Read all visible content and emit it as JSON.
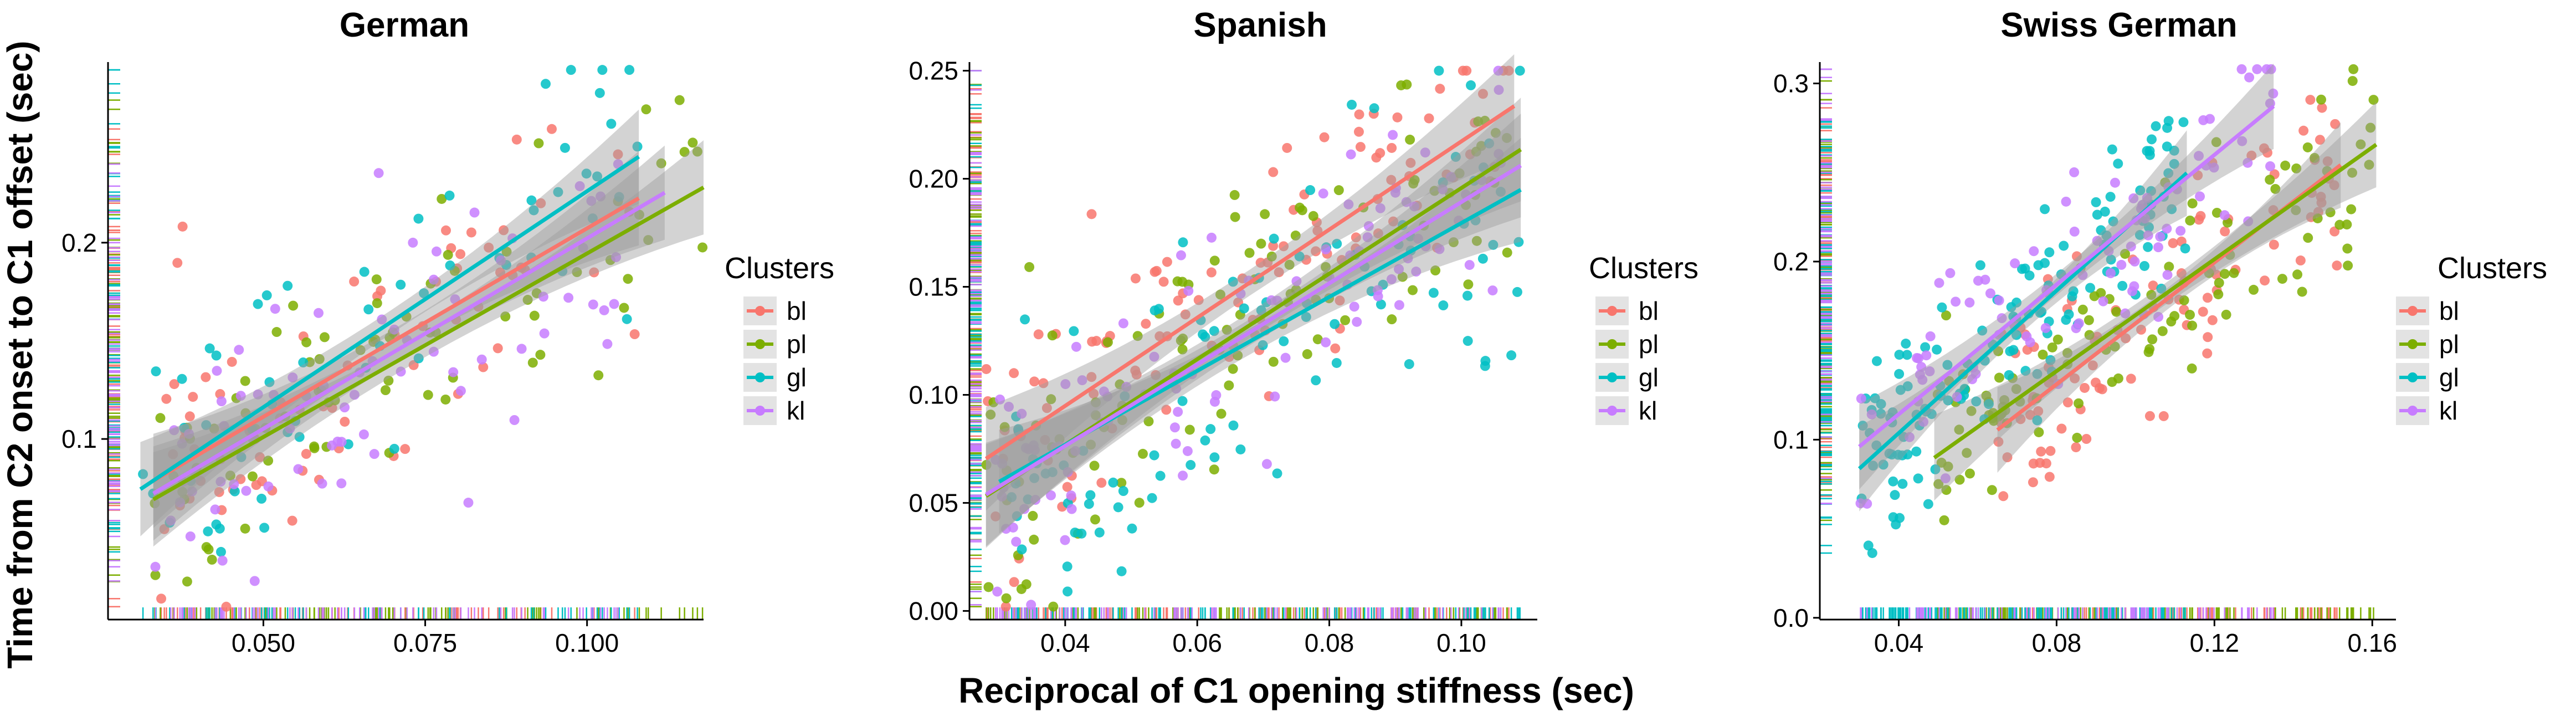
{
  "figure": {
    "ylabel": "Time from C2 onset to C1 offset (sec)",
    "xlabel": "Reciprocal of C1 opening stiffness (sec)"
  },
  "colors": {
    "bl": "#F8766D",
    "pl": "#7CAE00",
    "gl": "#00BFC4",
    "kl": "#C77CFF",
    "ribbon": "#9E9E9E"
  },
  "chart_data": [
    {
      "type": "scatter",
      "title": "German",
      "xlim": [
        0.026,
        0.118
      ],
      "ylim": [
        0.008,
        0.292
      ],
      "xticks": [
        0.05,
        0.075,
        0.1
      ],
      "xtick_labels": [
        "0.050",
        "0.075",
        "0.100"
      ],
      "yticks": [
        0.1,
        0.2
      ],
      "ytick_labels": [
        "0.1",
        "0.2"
      ],
      "legend": {
        "title": "Clusters",
        "entries": [
          "bl",
          "pl",
          "gl",
          "kl"
        ],
        "position": "right"
      },
      "series": [
        {
          "name": "bl",
          "n": 75,
          "seed": 11,
          "xrange": [
            0.033,
            0.108
          ],
          "fit": {
            "intercept": 0.0153,
            "slope": 1.92
          },
          "noise": 0.034
        },
        {
          "name": "pl",
          "n": 80,
          "seed": 12,
          "xrange": [
            0.033,
            0.118
          ],
          "fit": {
            "intercept": 0.0075,
            "slope": 1.87
          },
          "noise": 0.036
        },
        {
          "name": "gl",
          "n": 60,
          "seed": 13,
          "xrange": [
            0.031,
            0.108
          ],
          "fit": {
            "intercept": 0.0062,
            "slope": 2.2
          },
          "noise": 0.033
        },
        {
          "name": "kl",
          "n": 75,
          "seed": 14,
          "xrange": [
            0.033,
            0.112
          ],
          "fit": {
            "intercept": 0.0082,
            "slope": 1.94
          },
          "noise": 0.034
        }
      ]
    },
    {
      "type": "scatter",
      "title": "Spanish",
      "xlim": [
        0.0255,
        0.1115
      ],
      "ylim": [
        -0.004,
        0.254
      ],
      "xticks": [
        0.04,
        0.06,
        0.08,
        0.1
      ],
      "xtick_labels": [
        "0.04",
        "0.06",
        "0.08",
        "0.10"
      ],
      "yticks": [
        0.0,
        0.05,
        0.1,
        0.15,
        0.2,
        0.25
      ],
      "ytick_labels": [
        "0.00",
        "0.05",
        "0.10",
        "0.15",
        "0.20",
        "0.25"
      ],
      "legend": {
        "title": "Clusters",
        "entries": [
          "bl",
          "pl",
          "gl",
          "kl"
        ],
        "position": "right"
      },
      "series": [
        {
          "name": "bl",
          "n": 110,
          "seed": 21,
          "xrange": [
            0.028,
            0.108
          ],
          "fit": {
            "intercept": 0.0133,
            "slope": 2.04
          },
          "noise": 0.028
        },
        {
          "name": "pl",
          "n": 110,
          "seed": 22,
          "xrange": [
            0.028,
            0.109
          ],
          "fit": {
            "intercept": -0.0023,
            "slope": 1.98
          },
          "noise": 0.029
        },
        {
          "name": "gl",
          "n": 100,
          "seed": 23,
          "xrange": [
            0.03,
            0.109
          ],
          "fit": {
            "intercept": 0.0085,
            "slope": 1.71
          },
          "noise": 0.033
        },
        {
          "name": "kl",
          "n": 100,
          "seed": 24,
          "xrange": [
            0.028,
            0.109
          ],
          "fit": {
            "intercept": 0.0012,
            "slope": 1.88
          },
          "noise": 0.029
        }
      ]
    },
    {
      "type": "scatter",
      "title": "Swiss German",
      "xlim": [
        0.02,
        0.166
      ],
      "ylim": [
        -0.001,
        0.312
      ],
      "xticks": [
        0.04,
        0.08,
        0.12,
        0.16
      ],
      "xtick_labels": [
        "0.04",
        "0.08",
        "0.12",
        "0.16"
      ],
      "yticks": [
        0.0,
        0.1,
        0.2,
        0.3
      ],
      "ytick_labels": [
        "0.0",
        "0.1",
        "0.2",
        "0.3"
      ],
      "legend": {
        "title": "Clusters",
        "entries": [
          "bl",
          "pl",
          "gl",
          "kl"
        ],
        "position": "right"
      },
      "series": [
        {
          "name": "bl",
          "n": 100,
          "seed": 31,
          "xrange": [
            0.065,
            0.152
          ],
          "fit": {
            "intercept": -0.0057,
            "slope": 1.71
          },
          "noise": 0.03
        },
        {
          "name": "pl",
          "n": 110,
          "seed": 32,
          "xrange": [
            0.049,
            0.161
          ],
          "fit": {
            "intercept": 0.0129,
            "slope": 1.57
          },
          "noise": 0.032
        },
        {
          "name": "gl",
          "n": 140,
          "seed": 33,
          "xrange": [
            0.03,
            0.113
          ],
          "fit": {
            "intercept": 0.0237,
            "slope": 2.0
          },
          "noise": 0.028
        },
        {
          "name": "kl",
          "n": 90,
          "seed": 34,
          "xrange": [
            0.03,
            0.135
          ],
          "fit": {
            "intercept": 0.0415,
            "slope": 1.82
          },
          "noise": 0.032
        }
      ]
    }
  ]
}
